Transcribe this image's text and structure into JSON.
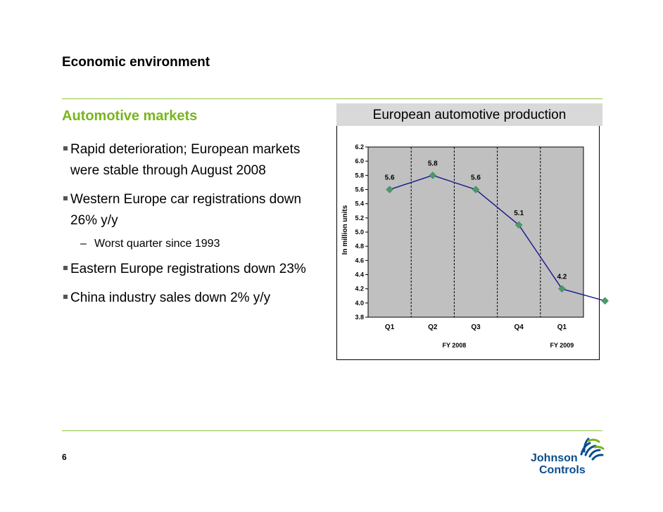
{
  "slide": {
    "title": "Economic environment",
    "page_number": "6"
  },
  "left": {
    "section_title": "Automotive markets",
    "bullets": [
      {
        "text": "Rapid deterioration; European markets were stable through August 2008"
      },
      {
        "text": "Western Europe car registrations down 26% y/y",
        "sub": "Worst quarter since 1993"
      },
      {
        "text": "Eastern Europe registrations down 23%"
      },
      {
        "text": "China industry sales down 2% y/y"
      }
    ]
  },
  "logo": {
    "line1": "Johnson",
    "line2": "Controls"
  },
  "colors": {
    "accent_green": "#7ab51d",
    "rule_green": "#8dc63f",
    "plot_bg": "#c0c0c0",
    "line": "#1f1f8f",
    "marker": "#4a9a6a",
    "logo_blue": "#0a4d8c"
  },
  "chart_data": {
    "type": "line",
    "title": "European automotive production",
    "ylabel": "In million units",
    "ylim": [
      3.8,
      6.2
    ],
    "yticks": [
      "6.2",
      "6.0",
      "5.8",
      "5.6",
      "5.4",
      "5.2",
      "5.0",
      "4.8",
      "4.6",
      "4.4",
      "4.2",
      "4.0",
      "3.8"
    ],
    "categories": [
      "Q1",
      "Q2",
      "Q3",
      "Q4",
      "Q1",
      ""
    ],
    "groups": [
      {
        "label": "FY 2008",
        "span": [
          0,
          3
        ]
      },
      {
        "label": "FY 2009",
        "span": [
          4,
          4
        ]
      }
    ],
    "values": [
      5.6,
      5.8,
      5.6,
      5.1,
      4.2,
      4.03
    ],
    "data_labels": [
      "5.6",
      "5.8",
      "5.6",
      "5.1",
      "4.2",
      ""
    ],
    "grid": false
  }
}
